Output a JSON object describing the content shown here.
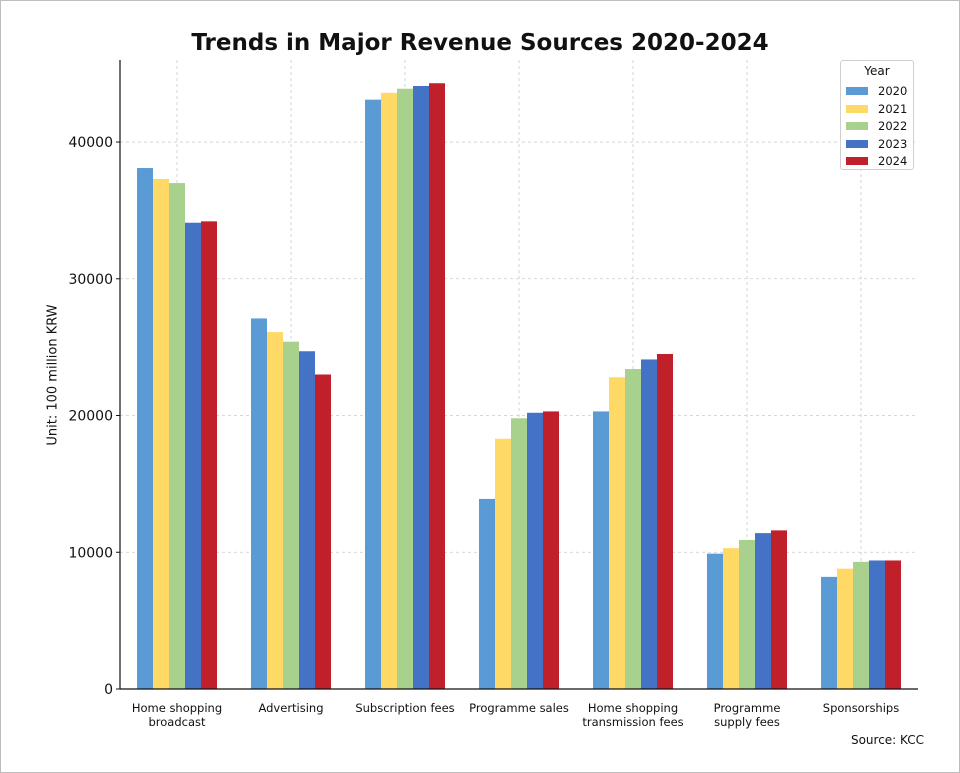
{
  "chart_data": {
    "type": "bar",
    "title": "Trends in Major Revenue Sources 2020-2024",
    "xlabel": "",
    "ylabel": "Unit: 100 million KRW",
    "ylim": [
      0,
      46000
    ],
    "yticks": [
      0,
      10000,
      20000,
      30000,
      40000
    ],
    "grid": true,
    "legend_title": "Year",
    "legend_position": "top-right",
    "source": "Source: KCC",
    "categories": [
      [
        "Home shopping",
        "broadcast"
      ],
      [
        "Advertising"
      ],
      [
        "Subscription fees"
      ],
      [
        "Programme sales"
      ],
      [
        "Home shopping",
        "transmission fees"
      ],
      [
        "Programme",
        "supply fees"
      ],
      [
        "Sponsorships"
      ]
    ],
    "series": [
      {
        "name": "2020",
        "color": "#5b9bd5",
        "values": [
          38100,
          27100,
          43100,
          13900,
          20300,
          9900,
          8200
        ]
      },
      {
        "name": "2021",
        "color": "#ffd966",
        "values": [
          37300,
          26100,
          43600,
          18300,
          22800,
          10300,
          8800
        ]
      },
      {
        "name": "2022",
        "color": "#a9d18e",
        "values": [
          37000,
          25400,
          43900,
          19800,
          23400,
          10900,
          9300
        ]
      },
      {
        "name": "2023",
        "color": "#4472c4",
        "values": [
          34100,
          24700,
          44100,
          20200,
          24100,
          11400,
          9400
        ]
      },
      {
        "name": "2024",
        "color": "#c0202a",
        "values": [
          34200,
          23000,
          44300,
          20300,
          24500,
          11600,
          9400
        ]
      }
    ]
  }
}
